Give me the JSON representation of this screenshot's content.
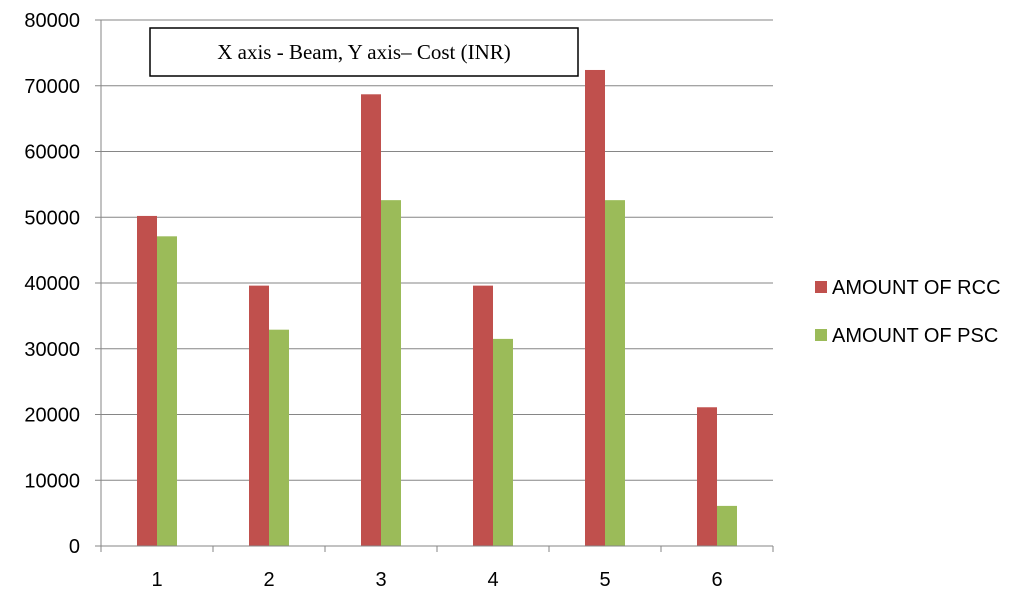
{
  "chart_data": {
    "type": "bar",
    "title": "",
    "xlabel": "",
    "ylabel": "",
    "categories": [
      "1",
      "2",
      "3",
      "4",
      "5",
      "6"
    ],
    "series": [
      {
        "name": "AMOUNT OF RCC",
        "color": "#C0504D",
        "values": [
          50200,
          39600,
          68700,
          39600,
          72400,
          21100
        ]
      },
      {
        "name": "AMOUNT OF PSC",
        "color": "#9BBB59",
        "values": [
          47100,
          32900,
          52600,
          31500,
          52600,
          6100
        ]
      }
    ],
    "ylim": [
      0,
      80000
    ],
    "yticks": [
      "0",
      "10000",
      "20000",
      "30000",
      "40000",
      "50000",
      "60000",
      "70000",
      "80000"
    ],
    "grid": true,
    "legend_position": "right",
    "annotation": "X axis - Beam, Y axis– Cost (INR)"
  }
}
